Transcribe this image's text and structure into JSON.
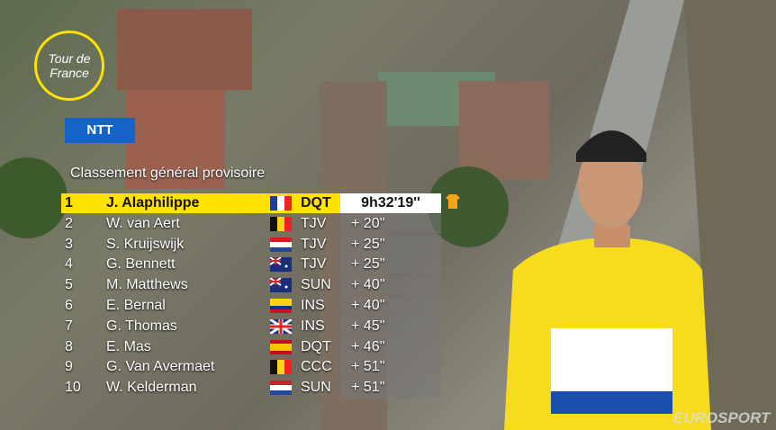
{
  "broadcast": {
    "logo": "Tour de France",
    "sponsor": "NTT",
    "channel": "EUROSPORT"
  },
  "standings": {
    "title": "Classement général provisoire",
    "rows": [
      [
        1,
        "J. Alaphilippe",
        "DQT",
        "9h32'19''"
      ],
      [
        2,
        "W. van Aert",
        "TJV",
        "+ 20''"
      ],
      [
        3,
        "S. Kruijswijk",
        "TJV",
        "+ 25''"
      ],
      [
        4,
        "G. Bennett",
        "TJV",
        "+ 25''"
      ],
      [
        5,
        "M. Matthews",
        "SUN",
        "+ 40''"
      ],
      [
        6,
        "E. Bernal",
        "INS",
        "+ 40''"
      ],
      [
        7,
        "G. Thomas",
        "INS",
        "+ 45''"
      ],
      [
        8,
        "E. Mas",
        "DQT",
        "+ 46''"
      ],
      [
        9,
        "G. Van Avermaet",
        "CCC",
        "+ 51''"
      ],
      [
        10,
        "W. Kelderman",
        "SUN",
        "+ 51''"
      ]
    ]
  }
}
